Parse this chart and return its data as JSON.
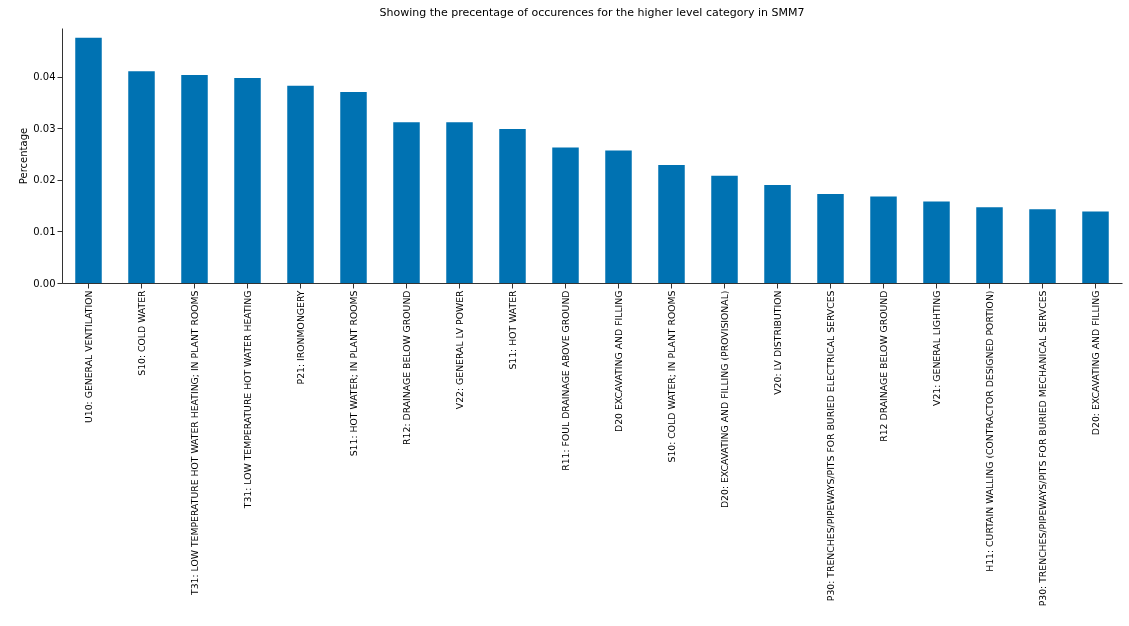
{
  "chart_data": {
    "type": "bar",
    "title": "Showing the precentage of occurences for the higher level category in SMM7",
    "ylabel": "Percentage",
    "categories": [
      "U10: GENERAL VENTILATION",
      "S10: COLD WATER",
      "T31: LOW TEMPERATURE HOT WATER HEATING; IN PLANT ROOMS",
      "T31: LOW TEMPERATURE HOT WATER HEATING",
      "P21: IRONMONGERY",
      "S11: HOT WATER; IN PLANT ROOMS",
      "R12: DRAINAGE BELOW GROUND",
      "V22: GENERAL LV POWER",
      "S11: HOT WATER",
      "R11: FOUL DRAINAGE ABOVE GROUND",
      "D20 EXCAVATING AND FILLING",
      "S10: COLD WATER; IN PLANT ROOMS",
      "D20: EXCAVATING AND FILLING (PROVISIONAL)",
      "V20: LV DISTRIBUTION",
      "P30: TRENCHES/PIPEWAYS/PITS FOR BURIED ELECTRICAL SERVCES",
      "R12 DRAINAGE BELOW GROUND",
      "V21: GENERAL LIGHTING",
      "H11: CURTAIN WALLING (CONTRACTOR DESIGNED PORTION)",
      "P30: TRENCHES/PIPEWAYS/PITS FOR BURIED MECHANICAL SERVCES",
      "D20: EXCAVATING AND FILLING"
    ],
    "values": [
      0.0476,
      0.0411,
      0.0404,
      0.0398,
      0.0383,
      0.0371,
      0.0312,
      0.0312,
      0.0299,
      0.0263,
      0.0257,
      0.0229,
      0.0208,
      0.019,
      0.0173,
      0.0168,
      0.0158,
      0.0147,
      0.0143,
      0.0139
    ],
    "color": "#0072b2",
    "ylim": [
      0,
      0.0495
    ],
    "yticks": [
      {
        "value": 0,
        "label": "0.00"
      },
      {
        "value": 0.01,
        "label": "0.01"
      },
      {
        "value": 0.02,
        "label": "0.02"
      },
      {
        "value": 0.03,
        "label": "0.03"
      },
      {
        "value": 0.04,
        "label": "0.04"
      }
    ],
    "grid": false
  }
}
